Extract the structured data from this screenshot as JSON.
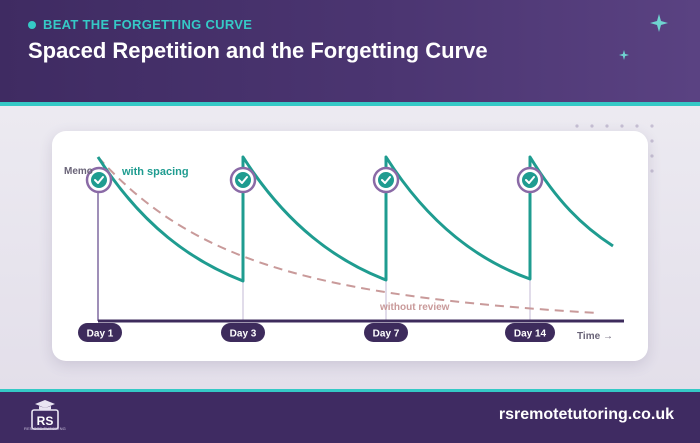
{
  "header": {
    "eyebrow": "BEAT THE FORGETTING CURVE",
    "title": "Spaced Repetition and the Forgetting Curve"
  },
  "diagram": {
    "y_axis_label": "Memo",
    "x_axis_label": "Time →",
    "curve_with_spacing_label": "with spacing",
    "curve_without_review_label": "without review",
    "review_points": [
      "Day 1",
      "Day 3",
      "Day 7",
      "Day 14"
    ],
    "colors": {
      "with_spacing": "#1f9c90",
      "without_review": "#c99a9a",
      "axis": "#3d2b5c",
      "review_marker": "#8a6aa6",
      "day_pill": "#3d2b5c"
    }
  },
  "footer": {
    "logo_text": "RS",
    "logo_tagline": "REMOTE TUTORING",
    "url": "rsremotetutoring.co.uk"
  },
  "icons": {
    "review_marker": "check-circle-icon",
    "sparkle": "sparkle-icon",
    "logo_cap": "graduation-cap-icon"
  }
}
